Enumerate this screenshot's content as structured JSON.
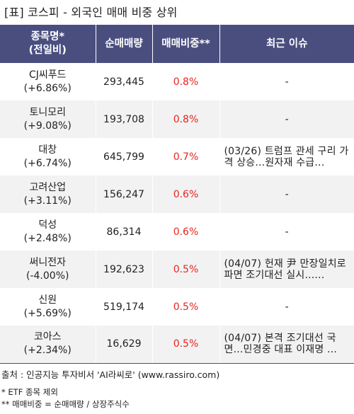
{
  "title": "[표] 코스피 - 외국인 매매 비중 상위",
  "headers": {
    "name_line1": "종목명*",
    "name_line2": "(전일비)",
    "volume": "순매매량",
    "ratio": "매매비중**",
    "issue": "최근 이슈"
  },
  "rows": [
    {
      "name": "CJ씨푸드",
      "change": "(+6.86%)",
      "volume": "293,445",
      "ratio": "0.8%",
      "issue": "-"
    },
    {
      "name": "토니모리",
      "change": "(+9.08%)",
      "volume": "193,708",
      "ratio": "0.8%",
      "issue": "-"
    },
    {
      "name": "대창",
      "change": "(+6.74%)",
      "volume": "645,799",
      "ratio": "0.7%",
      "issue": "(03/26) 트럼프 관세 구리 가격 상승...원자재 수급..."
    },
    {
      "name": "고려산업",
      "change": "(+3.11%)",
      "volume": "156,247",
      "ratio": "0.6%",
      "issue": "-"
    },
    {
      "name": "덕성",
      "change": "(+2.48%)",
      "volume": "86,314",
      "ratio": "0.6%",
      "issue": "-"
    },
    {
      "name": "써니전자",
      "change": "(-4.00%)",
      "volume": "192,623",
      "ratio": "0.5%",
      "issue": "(04/07) 헌재 尹 만장일치로 파면 조기대선 실시......"
    },
    {
      "name": "신원",
      "change": "(+5.69%)",
      "volume": "519,174",
      "ratio": "0.5%",
      "issue": "-"
    },
    {
      "name": "코아스",
      "change": "(+2.34%)",
      "volume": "16,629",
      "ratio": "0.5%",
      "issue": "(04/07) 본격 조기대선 국면...민경중 대표 이재명 ..."
    }
  ],
  "source": "출처 : 인공지능 투자비서 'AI라씨로' (www.rassiro.com)",
  "note1": "* ETF 종목 제외",
  "note2": "** 매매비중 = 순매매량 / 상장주식수",
  "colors": {
    "header_bg": "#4a4e7f",
    "ratio_text": "#e8241f",
    "stripe": "#f2f2f2"
  }
}
